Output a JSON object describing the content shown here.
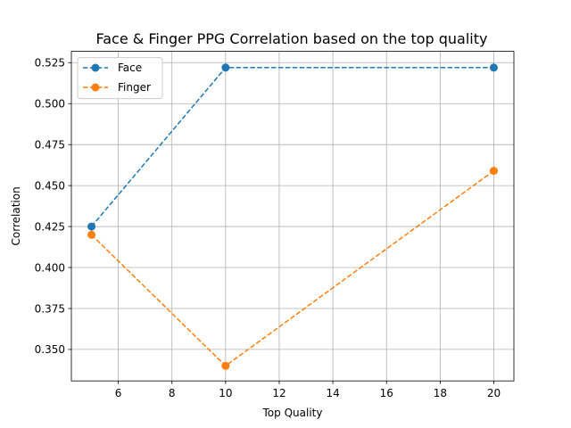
{
  "chart_data": {
    "type": "line",
    "title": "Face & Finger PPG Correlation based on the top quality",
    "xlabel": "Top Quality",
    "ylabel": "Correlation",
    "x": [
      5,
      10,
      20
    ],
    "xlim": [
      4.25,
      20.75
    ],
    "ylim": [
      0.3308,
      0.5319
    ],
    "xticks": [
      6,
      8,
      10,
      12,
      14,
      16,
      18,
      20
    ],
    "yticks": [
      0.35,
      0.375,
      0.4,
      0.425,
      0.45,
      0.475,
      0.5,
      0.525
    ],
    "ytick_labels": [
      "0.350",
      "0.375",
      "0.400",
      "0.425",
      "0.450",
      "0.475",
      "0.500",
      "0.525"
    ],
    "grid": true,
    "legend_position": "top-left",
    "series": [
      {
        "name": "Face",
        "color": "#1f77b4",
        "values": [
          0.425,
          0.522,
          0.522
        ]
      },
      {
        "name": "Finger",
        "color": "#ff7f0e",
        "values": [
          0.42,
          0.34,
          0.459
        ]
      }
    ]
  }
}
